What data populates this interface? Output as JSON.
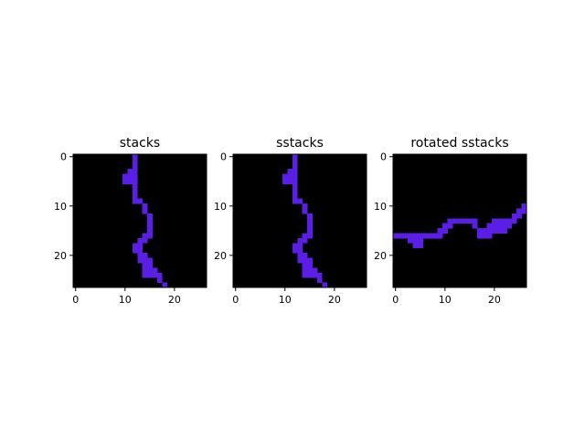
{
  "chart_data": [
    {
      "type": "heatmap",
      "title": "stacks",
      "grid_size": [
        27,
        27
      ],
      "xlim": [
        -0.5,
        26.5
      ],
      "ylim": [
        26.5,
        -0.5
      ],
      "xticks": [
        0,
        10,
        20
      ],
      "yticks": [
        0,
        10,
        20
      ],
      "grid": false,
      "background_color": "#000000",
      "pixel_color": "#5b1ee6",
      "pixels": [
        [
          0,
          12
        ],
        [
          1,
          12
        ],
        [
          2,
          12
        ],
        [
          3,
          11
        ],
        [
          3,
          12
        ],
        [
          4,
          10
        ],
        [
          4,
          11
        ],
        [
          4,
          12
        ],
        [
          5,
          10
        ],
        [
          5,
          11
        ],
        [
          5,
          12
        ],
        [
          6,
          12
        ],
        [
          7,
          12
        ],
        [
          8,
          12
        ],
        [
          9,
          12
        ],
        [
          9,
          13
        ],
        [
          10,
          14
        ],
        [
          11,
          14
        ],
        [
          12,
          15
        ],
        [
          13,
          15
        ],
        [
          14,
          15
        ],
        [
          15,
          15
        ],
        [
          16,
          14
        ],
        [
          16,
          15
        ],
        [
          17,
          13
        ],
        [
          17,
          14
        ],
        [
          18,
          12
        ],
        [
          18,
          13
        ],
        [
          19,
          12
        ],
        [
          19,
          13
        ],
        [
          20,
          13
        ],
        [
          20,
          14
        ],
        [
          21,
          13
        ],
        [
          21,
          14
        ],
        [
          21,
          15
        ],
        [
          22,
          14
        ],
        [
          22,
          15
        ],
        [
          23,
          14
        ],
        [
          23,
          15
        ],
        [
          23,
          16
        ],
        [
          24,
          14
        ],
        [
          24,
          15
        ],
        [
          24,
          16
        ],
        [
          24,
          17
        ],
        [
          25,
          17
        ],
        [
          26,
          18
        ]
      ]
    },
    {
      "type": "heatmap",
      "title": "sstacks",
      "grid_size": [
        27,
        27
      ],
      "xlim": [
        -0.5,
        26.5
      ],
      "ylim": [
        26.5,
        -0.5
      ],
      "xticks": [
        0,
        10,
        20
      ],
      "yticks": [
        0,
        10,
        20
      ],
      "grid": false,
      "background_color": "#000000",
      "pixel_color": "#5b1ee6",
      "pixels": [
        [
          0,
          12
        ],
        [
          1,
          12
        ],
        [
          2,
          12
        ],
        [
          3,
          11
        ],
        [
          3,
          12
        ],
        [
          4,
          10
        ],
        [
          4,
          11
        ],
        [
          4,
          12
        ],
        [
          5,
          10
        ],
        [
          5,
          11
        ],
        [
          5,
          12
        ],
        [
          6,
          12
        ],
        [
          7,
          12
        ],
        [
          8,
          12
        ],
        [
          9,
          12
        ],
        [
          9,
          13
        ],
        [
          10,
          14
        ],
        [
          11,
          14
        ],
        [
          12,
          15
        ],
        [
          13,
          15
        ],
        [
          14,
          15
        ],
        [
          15,
          15
        ],
        [
          16,
          14
        ],
        [
          16,
          15
        ],
        [
          17,
          13
        ],
        [
          17,
          14
        ],
        [
          18,
          12
        ],
        [
          18,
          13
        ],
        [
          19,
          12
        ],
        [
          19,
          13
        ],
        [
          20,
          13
        ],
        [
          20,
          14
        ],
        [
          21,
          13
        ],
        [
          21,
          14
        ],
        [
          21,
          15
        ],
        [
          22,
          14
        ],
        [
          22,
          15
        ],
        [
          23,
          14
        ],
        [
          23,
          15
        ],
        [
          23,
          16
        ],
        [
          24,
          14
        ],
        [
          24,
          15
        ],
        [
          24,
          16
        ],
        [
          24,
          17
        ],
        [
          25,
          17
        ],
        [
          26,
          18
        ]
      ]
    },
    {
      "type": "heatmap",
      "title": "rotated sstacks",
      "grid_size": [
        27,
        27
      ],
      "xlim": [
        -0.5,
        26.5
      ],
      "ylim": [
        26.5,
        -0.5
      ],
      "xticks": [
        0,
        10,
        20
      ],
      "yticks": [
        0,
        10,
        20
      ],
      "grid": false,
      "background_color": "#000000",
      "pixel_color": "#5b1ee6",
      "pixels": [
        [
          10,
          26
        ],
        [
          11,
          25
        ],
        [
          11,
          26
        ],
        [
          12,
          24
        ],
        [
          12,
          25
        ],
        [
          13,
          20
        ],
        [
          13,
          21
        ],
        [
          13,
          22
        ],
        [
          13,
          23
        ],
        [
          13,
          24
        ],
        [
          13,
          11
        ],
        [
          13,
          12
        ],
        [
          13,
          13
        ],
        [
          13,
          14
        ],
        [
          13,
          15
        ],
        [
          13,
          16
        ],
        [
          14,
          10
        ],
        [
          14,
          11
        ],
        [
          14,
          16
        ],
        [
          14,
          19
        ],
        [
          14,
          20
        ],
        [
          14,
          21
        ],
        [
          14,
          22
        ],
        [
          14,
          23
        ],
        [
          15,
          9
        ],
        [
          15,
          10
        ],
        [
          15,
          17
        ],
        [
          15,
          18
        ],
        [
          15,
          19
        ],
        [
          15,
          20
        ],
        [
          15,
          21
        ],
        [
          15,
          22
        ],
        [
          16,
          0
        ],
        [
          16,
          1
        ],
        [
          16,
          2
        ],
        [
          16,
          3
        ],
        [
          16,
          4
        ],
        [
          16,
          5
        ],
        [
          16,
          6
        ],
        [
          16,
          7
        ],
        [
          16,
          8
        ],
        [
          16,
          9
        ],
        [
          16,
          17
        ],
        [
          16,
          18
        ],
        [
          16,
          19
        ],
        [
          17,
          3
        ],
        [
          17,
          4
        ],
        [
          17,
          5
        ],
        [
          18,
          4
        ],
        [
          18,
          5
        ]
      ]
    }
  ]
}
